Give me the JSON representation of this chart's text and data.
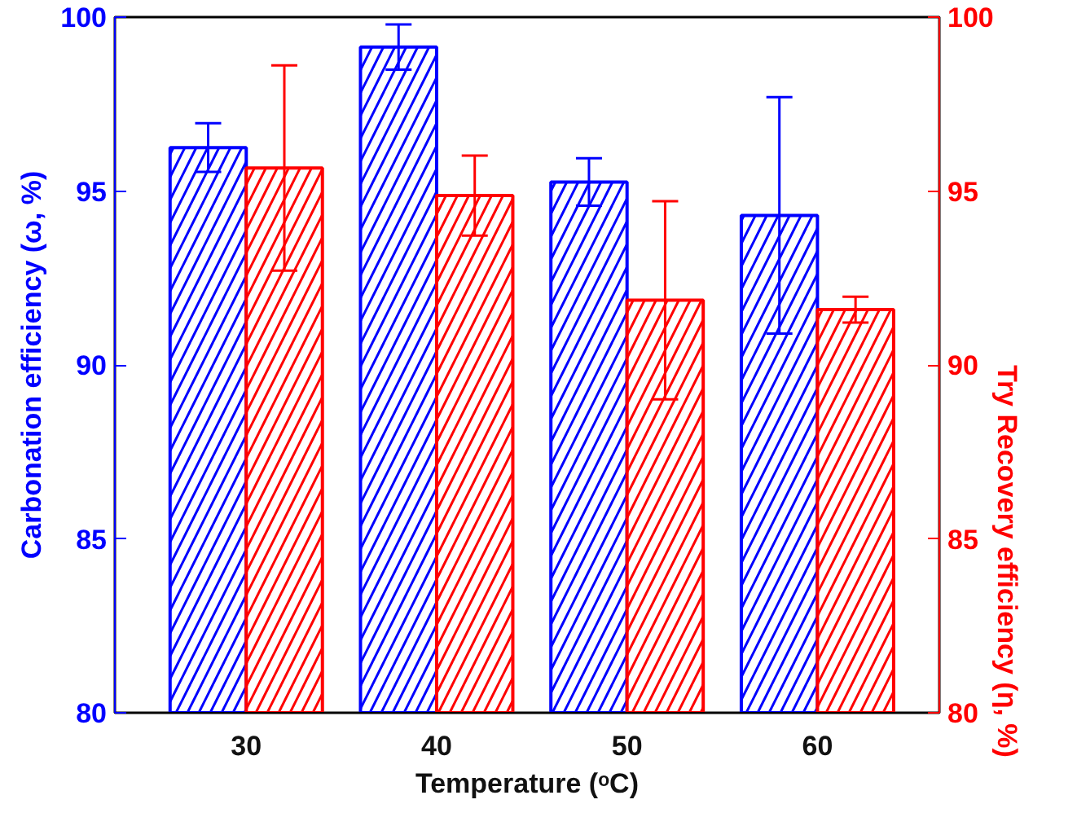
{
  "chart_data": {
    "type": "bar",
    "xlabel": "Temperature (ᵒC)",
    "ylabel": "Carbonation efficiency (ω, %)",
    "y2label": "Try Recovery efficiency (η, %)",
    "categories": [
      "30",
      "40",
      "50",
      "60"
    ],
    "series": [
      {
        "color": "#0000ff",
        "values": [
          96.25,
          99.14,
          95.26,
          94.3
        ],
        "errors": [
          0.7,
          0.65,
          0.68,
          3.4
        ]
      },
      {
        "color": "#ff0000",
        "axis": "y2",
        "values": [
          95.66,
          94.87,
          91.86,
          91.59
        ],
        "errors": [
          2.95,
          1.15,
          2.85,
          0.37
        ]
      }
    ],
    "ylim": [
      80,
      100
    ],
    "yticks": [
      80,
      85,
      90,
      95,
      100
    ],
    "y2lim": [
      80,
      100
    ],
    "y2ticks": [
      80,
      85,
      90,
      95,
      100
    ],
    "grid": false
  }
}
